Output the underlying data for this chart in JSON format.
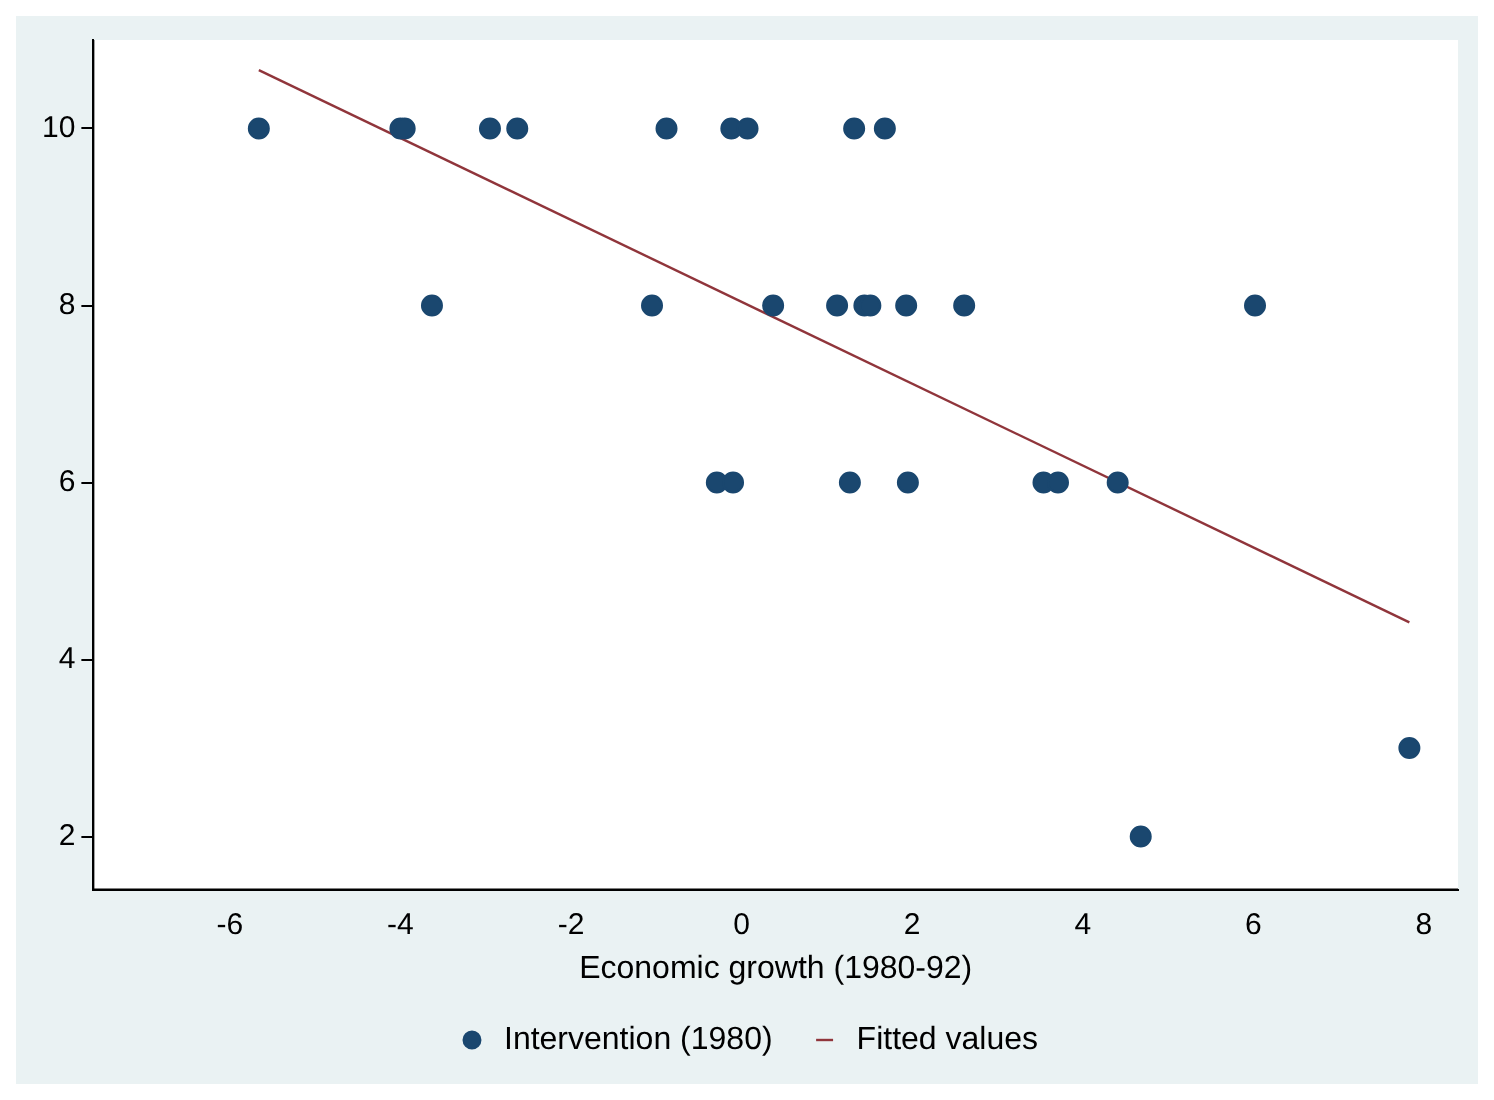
{
  "chart_data": {
    "type": "scatter",
    "xlabel": "Economic growth (1980-92)",
    "xlim": [
      -7.6,
      8.4
    ],
    "xticks": [
      -6,
      -4,
      -2,
      0,
      2,
      4,
      6,
      8
    ],
    "ylim": [
      1.4,
      11.0
    ],
    "yticks": [
      2,
      4,
      6,
      8,
      10
    ],
    "grid": false,
    "legend": "bottom",
    "series": [
      {
        "name": "Intervention (1980)",
        "color": "#1a476f",
        "marker": "circle",
        "x": [
          -5.66,
          -4.0,
          -3.95,
          -2.95,
          -2.63,
          -0.88,
          -0.12,
          0.07,
          1.32,
          1.68,
          -3.63,
          -1.05,
          0.37,
          1.12,
          1.44,
          1.51,
          1.93,
          2.61,
          6.02,
          -0.29,
          -0.1,
          1.27,
          1.95,
          3.54,
          3.71,
          4.41,
          4.68,
          7.83
        ],
        "values": [
          10,
          10,
          10,
          10,
          10,
          10,
          10,
          10,
          10,
          10,
          8,
          8,
          8,
          8,
          8,
          8,
          8,
          8,
          8,
          6,
          6,
          6,
          6,
          6,
          6,
          6,
          2,
          3
        ]
      },
      {
        "name": "Fitted values",
        "color": "#90353b",
        "type": "line",
        "x": [
          -5.66,
          7.83
        ],
        "values": [
          10.66,
          4.42
        ]
      }
    ]
  }
}
